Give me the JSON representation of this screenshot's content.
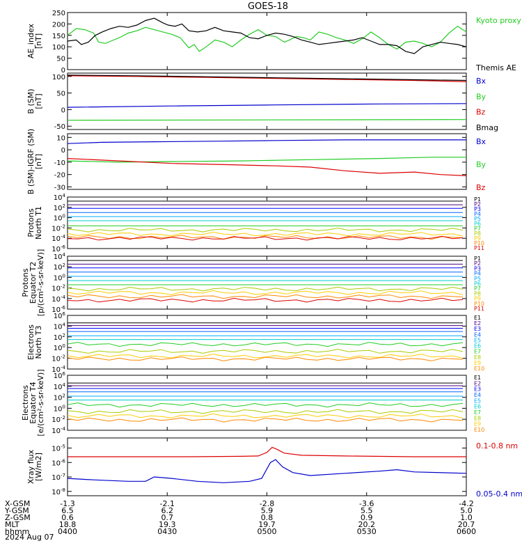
{
  "title": "GOES-18",
  "date_label": "2024 Aug 07",
  "colors": {
    "black": "#000000",
    "blue": "#0000cc",
    "green": "#22cc22",
    "red": "#dd0000",
    "proton": [
      "#000000",
      "#4b0082",
      "#0000ff",
      "#0066ff",
      "#00aaff",
      "#00cccc",
      "#22cc22",
      "#aacc00",
      "#ffcc00",
      "#ff8800",
      "#dd0000",
      "#b00000"
    ],
    "electron": [
      "#000000",
      "#4b0082",
      "#0000ff",
      "#0066ff",
      "#00aaff",
      "#00cccc",
      "#22cc22",
      "#aacc00",
      "#ffcc00",
      "#ff8800",
      "#dd0000",
      "#b00000"
    ]
  },
  "x_axis": {
    "rows": [
      {
        "label": "X-GSM",
        "values": [
          "-1.3",
          "-2.1",
          "-2.8",
          "-3.6",
          "-4.2"
        ]
      },
      {
        "label": "Y-GSM",
        "values": [
          "6.5",
          "6.2",
          "5.9",
          "5.5",
          "5.0"
        ]
      },
      {
        "label": "Z-GSM",
        "values": [
          "0.6",
          "0.7",
          "0.8",
          "0.9",
          "1.0"
        ]
      },
      {
        "label": "MLT",
        "values": [
          "18.8",
          "19.3",
          "19.7",
          "20.2",
          "20.7"
        ]
      },
      {
        "label": "hhmm",
        "values": [
          "0400",
          "0430",
          "0500",
          "0530",
          "0600"
        ]
      }
    ]
  },
  "chart_data": [
    {
      "type": "line",
      "ylabel": "AE_index\n[nT]",
      "ylim": [
        0,
        250
      ],
      "yticks": [
        "0",
        "50",
        "100",
        "150",
        "200",
        "250"
      ],
      "x": [
        "0400",
        "0600"
      ],
      "series": [
        {
          "name": "Kyoto proxy AE",
          "color": "#22cc22",
          "values": [
            [
              0,
              150
            ],
            [
              5,
              180
            ],
            [
              10,
              175
            ],
            [
              15,
              160
            ],
            [
              18,
              120
            ],
            [
              22,
              115
            ],
            [
              25,
              125
            ],
            [
              30,
              140
            ],
            [
              35,
              160
            ],
            [
              40,
              170
            ],
            [
              45,
              185
            ],
            [
              50,
              175
            ],
            [
              55,
              165
            ],
            [
              60,
              155
            ],
            [
              65,
              140
            ],
            [
              70,
              95
            ],
            [
              73,
              110
            ],
            [
              76,
              80
            ],
            [
              80,
              100
            ],
            [
              85,
              130
            ],
            [
              90,
              120
            ],
            [
              95,
              100
            ],
            [
              100,
              130
            ],
            [
              105,
              155
            ],
            [
              110,
              175
            ],
            [
              115,
              150
            ],
            [
              120,
              145
            ],
            [
              125,
              120
            ],
            [
              128,
              130
            ],
            [
              132,
              145
            ],
            [
              136,
              140
            ],
            [
              140,
              130
            ],
            [
              145,
              165
            ],
            [
              150,
              155
            ],
            [
              155,
              140
            ],
            [
              160,
              130
            ],
            [
              165,
              115
            ],
            [
              170,
              135
            ],
            [
              175,
              165
            ],
            [
              180,
              140
            ],
            [
              185,
              110
            ],
            [
              190,
              90
            ],
            [
              195,
              120
            ],
            [
              200,
              125
            ],
            [
              205,
              115
            ],
            [
              210,
              100
            ],
            [
              215,
              120
            ],
            [
              220,
              160
            ],
            [
              225,
              190
            ],
            [
              230,
              165
            ]
          ]
        },
        {
          "name": "Themis AE",
          "color": "#000000",
          "values": [
            [
              0,
              125
            ],
            [
              5,
              130
            ],
            [
              8,
              110
            ],
            [
              12,
              120
            ],
            [
              16,
              150
            ],
            [
              20,
              165
            ],
            [
              25,
              180
            ],
            [
              30,
              190
            ],
            [
              35,
              185
            ],
            [
              40,
              195
            ],
            [
              45,
              215
            ],
            [
              50,
              225
            ],
            [
              55,
              205
            ],
            [
              58,
              195
            ],
            [
              62,
              190
            ],
            [
              66,
              200
            ],
            [
              70,
              170
            ],
            [
              75,
              165
            ],
            [
              80,
              170
            ],
            [
              85,
              185
            ],
            [
              90,
              170
            ],
            [
              95,
              165
            ],
            [
              100,
              160
            ],
            [
              105,
              140
            ],
            [
              110,
              135
            ],
            [
              115,
              150
            ],
            [
              120,
              160
            ],
            [
              125,
              155
            ],
            [
              130,
              145
            ],
            [
              135,
              130
            ],
            [
              140,
              120
            ],
            [
              145,
              110
            ],
            [
              150,
              115
            ],
            [
              155,
              120
            ],
            [
              160,
              125
            ],
            [
              165,
              130
            ],
            [
              170,
              140
            ],
            [
              175,
              125
            ],
            [
              180,
              110
            ],
            [
              185,
              110
            ],
            [
              190,
              105
            ],
            [
              195,
              80
            ],
            [
              200,
              70
            ],
            [
              205,
              100
            ],
            [
              210,
              110
            ],
            [
              215,
              120
            ],
            [
              220,
              115
            ],
            [
              225,
              110
            ],
            [
              230,
              100
            ]
          ]
        }
      ]
    },
    {
      "type": "line",
      "ylabel": "B (SM)\n[nT]",
      "ylim": [
        -60,
        110
      ],
      "yticks": [
        "-50",
        "0",
        "50",
        "100"
      ],
      "tick_values": [
        -50,
        0,
        50,
        100
      ],
      "series": [
        {
          "name": "Bx",
          "color": "#0000cc",
          "values": [
            [
              0,
              7
            ],
            [
              60,
              11
            ],
            [
              120,
              14
            ],
            [
              180,
              17
            ],
            [
              230,
              18
            ]
          ]
        },
        {
          "name": "By",
          "color": "#22cc22",
          "values": [
            [
              0,
              -32
            ],
            [
              115,
              -31
            ],
            [
              230,
              -30
            ]
          ]
        },
        {
          "name": "Bz",
          "color": "#dd0000",
          "values": [
            [
              0,
              102
            ],
            [
              40,
              100
            ],
            [
              80,
              97
            ],
            [
              120,
              94
            ],
            [
              160,
              91
            ],
            [
              200,
              88
            ],
            [
              230,
              84
            ]
          ]
        },
        {
          "name": "Bmag",
          "color": "#000000",
          "values": [
            [
              0,
              104
            ],
            [
              40,
              102
            ],
            [
              80,
              99
            ],
            [
              120,
              96
            ],
            [
              160,
              93
            ],
            [
              200,
              90
            ],
            [
              230,
              88
            ]
          ]
        }
      ]
    },
    {
      "type": "line",
      "ylabel": "B (SM)-IGRF (SM)\n[nT]",
      "ylim": [
        -32,
        13
      ],
      "yticks": [
        "-30",
        "-20",
        "-10",
        "0",
        "10"
      ],
      "tick_values": [
        -30,
        -20,
        -10,
        0,
        10
      ],
      "series": [
        {
          "name": "Bx",
          "color": "#0000cc",
          "values": [
            [
              0,
              5
            ],
            [
              20,
              6
            ],
            [
              50,
              6.5
            ],
            [
              90,
              7
            ],
            [
              120,
              7.5
            ],
            [
              160,
              8
            ],
            [
              200,
              8
            ],
            [
              230,
              8
            ]
          ]
        },
        {
          "name": "By",
          "color": "#22cc22",
          "values": [
            [
              0,
              -9
            ],
            [
              30,
              -10
            ],
            [
              60,
              -9.5
            ],
            [
              100,
              -9
            ],
            [
              140,
              -8
            ],
            [
              180,
              -7
            ],
            [
              210,
              -6
            ],
            [
              230,
              -6
            ]
          ]
        },
        {
          "name": "Bz",
          "color": "#dd0000",
          "values": [
            [
              0,
              -7
            ],
            [
              30,
              -9
            ],
            [
              60,
              -11
            ],
            [
              90,
              -12
            ],
            [
              120,
              -13
            ],
            [
              140,
              -14
            ],
            [
              160,
              -17
            ],
            [
              180,
              -19
            ],
            [
              200,
              -18
            ],
            [
              215,
              -20
            ],
            [
              230,
              -21
            ]
          ]
        }
      ]
    },
    {
      "type": "line",
      "ylabel": "Protons\nNorth T1",
      "log": true,
      "ylim": [
        -6,
        4
      ],
      "yticks": [
        "10^-6",
        "10^-4",
        "10^-2",
        "10^0",
        "10^2",
        "10^4"
      ],
      "tick_values": [
        -6,
        -4,
        -2,
        0,
        2,
        4
      ],
      "channels": [
        "P1",
        "P2",
        "P3",
        "P4",
        "P5",
        "P6",
        "P7",
        "P8",
        "P9",
        "P10",
        "P11"
      ],
      "levels": [
        3.2,
        2.5,
        1.8,
        1.0,
        0.2,
        -0.6,
        -1.6,
        -2.4,
        -3.2,
        -3.8,
        -4.0
      ]
    },
    {
      "type": "line",
      "ylabel": "Protons\nEquator T2\n[p/(cm²-s-sr-keV)]",
      "log": true,
      "ylim": [
        -6,
        4
      ],
      "yticks": [
        "10^-6",
        "10^-4",
        "10^-2",
        "10^0",
        "10^2",
        "10^4"
      ],
      "tick_values": [
        -6,
        -4,
        -2,
        0,
        2,
        4
      ],
      "channels": [
        "P1",
        "P2",
        "P3",
        "P4",
        "P5",
        "P6",
        "P7",
        "P8",
        "P9",
        "P10",
        "P11"
      ],
      "levels": [
        3.2,
        2.5,
        1.8,
        1.0,
        0.2,
        -0.6,
        -1.4,
        -2.2,
        -2.9,
        -3.6,
        -4.3
      ]
    },
    {
      "type": "line",
      "ylabel": "Electrons\nNorth T3",
      "log": true,
      "ylim": [
        -4,
        6
      ],
      "yticks": [
        "10^-4",
        "10^-2",
        "10^0",
        "10^2",
        "10^4",
        "10^6"
      ],
      "tick_values": [
        -4,
        -2,
        0,
        2,
        4,
        6
      ],
      "channels": [
        "E1",
        "E2",
        "E3",
        "E4",
        "E5",
        "E6",
        "E7",
        "E8",
        "E9",
        "E10"
      ],
      "levels": [
        4.6,
        4.1,
        3.6,
        3.0,
        2.2,
        1.5,
        0.6,
        -0.7,
        -1.6,
        -2.1
      ]
    },
    {
      "type": "line",
      "ylabel": "Electrons\nEquator T4\n[e/(cm²-s-sr-keV)]",
      "log": true,
      "ylim": [
        -4,
        6
      ],
      "yticks": [
        "10^-4",
        "10^-2",
        "10^0",
        "10^2",
        "10^4",
        "10^6"
      ],
      "tick_values": [
        -4,
        -2,
        0,
        2,
        4,
        6
      ],
      "channels": [
        "E1",
        "E2",
        "E3",
        "E4",
        "E5",
        "E6",
        "E7",
        "E8",
        "E9",
        "E10"
      ],
      "levels": [
        4.6,
        4.1,
        3.6,
        3.0,
        2.2,
        1.5,
        0.6,
        -0.6,
        -1.4,
        -2.1
      ]
    },
    {
      "type": "line",
      "ylabel": "Xray flux\n[W/m2]",
      "log": true,
      "ylim": [
        -8.3,
        -4.3
      ],
      "yticks": [
        "10^-8",
        "10^-7",
        "10^-6",
        "10^-5"
      ],
      "tick_values": [
        -8,
        -7,
        -6,
        -5
      ],
      "series": [
        {
          "name": "0.1-0.8 nm",
          "color": "#dd0000",
          "values": [
            [
              0,
              -5.6
            ],
            [
              40,
              -5.6
            ],
            [
              70,
              -5.6
            ],
            [
              100,
              -5.57
            ],
            [
              110,
              -5.55
            ],
            [
              115,
              -5.3
            ],
            [
              118,
              -4.95
            ],
            [
              121,
              -5.1
            ],
            [
              125,
              -5.35
            ],
            [
              135,
              -5.5
            ],
            [
              160,
              -5.55
            ],
            [
              200,
              -5.6
            ],
            [
              230,
              -5.6
            ]
          ]
        },
        {
          "name": "0.05-0.4 nm",
          "color": "#0000cc",
          "values": [
            [
              0,
              -7.1
            ],
            [
              15,
              -7.2
            ],
            [
              35,
              -7.3
            ],
            [
              45,
              -7.3
            ],
            [
              50,
              -7.0
            ],
            [
              60,
              -7.1
            ],
            [
              75,
              -7.3
            ],
            [
              90,
              -7.4
            ],
            [
              105,
              -7.3
            ],
            [
              112,
              -7.1
            ],
            [
              117,
              -6.0
            ],
            [
              120,
              -5.8
            ],
            [
              124,
              -6.3
            ],
            [
              130,
              -6.7
            ],
            [
              140,
              -6.9
            ],
            [
              160,
              -6.75
            ],
            [
              180,
              -6.6
            ],
            [
              190,
              -6.5
            ],
            [
              200,
              -6.65
            ],
            [
              230,
              -6.75
            ]
          ]
        }
      ]
    }
  ]
}
